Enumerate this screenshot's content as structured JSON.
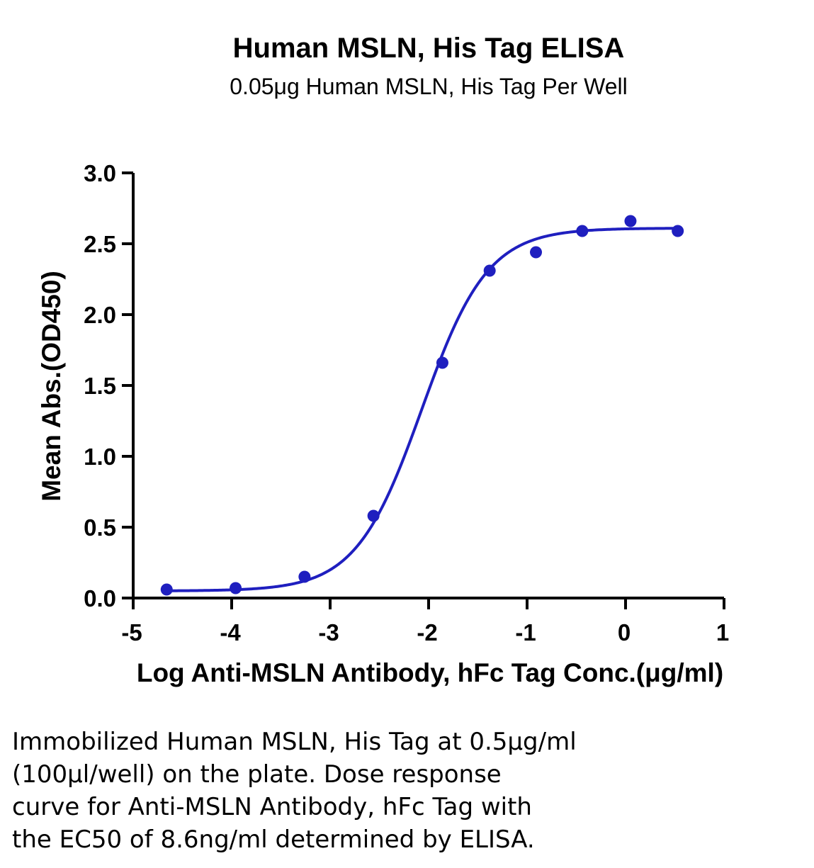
{
  "title": "Human MSLN, His Tag ELISA",
  "subtitle": "0.05μg Human MSLN, His Tag Per Well",
  "chart_data": {
    "type": "scatter",
    "xlabel": "Log Anti-MSLN Antibody, hFc Tag Conc.(μg/ml)",
    "ylabel": "Mean Abs.(OD450)",
    "xlim": [
      -5,
      1
    ],
    "ylim": [
      0,
      3.0
    ],
    "x_ticks": [
      "-5",
      "-4",
      "-3",
      "-2",
      "-1",
      "0",
      "1"
    ],
    "y_ticks": [
      "0.0",
      "0.5",
      "1.0",
      "1.5",
      "2.0",
      "2.5",
      "3.0"
    ],
    "color": "#1f1fbf",
    "grid": false,
    "series": [
      {
        "points": [
          {
            "x": -4.66,
            "y": 0.06
          },
          {
            "x": -3.96,
            "y": 0.07
          },
          {
            "x": -3.26,
            "y": 0.15
          },
          {
            "x": -2.56,
            "y": 0.58
          },
          {
            "x": -1.86,
            "y": 1.66
          },
          {
            "x": -1.38,
            "y": 2.31
          },
          {
            "x": -0.91,
            "y": 2.44
          },
          {
            "x": -0.44,
            "y": 2.59
          },
          {
            "x": 0.05,
            "y": 2.66
          },
          {
            "x": 0.53,
            "y": 2.59
          }
        ],
        "fit": {
          "model": "4PL",
          "bottom": 0.05,
          "top": 2.61,
          "log_ec50": -2.07,
          "hill": 1.3
        }
      }
    ]
  },
  "caption": [
    "Immobilized Human MSLN, His Tag at 0.5μg/ml",
    "(100μl/well) on the plate. Dose response",
    "curve for Anti-MSLN Antibody, hFc Tag with",
    "the EC50 of 8.6ng/ml determined by ELISA."
  ]
}
